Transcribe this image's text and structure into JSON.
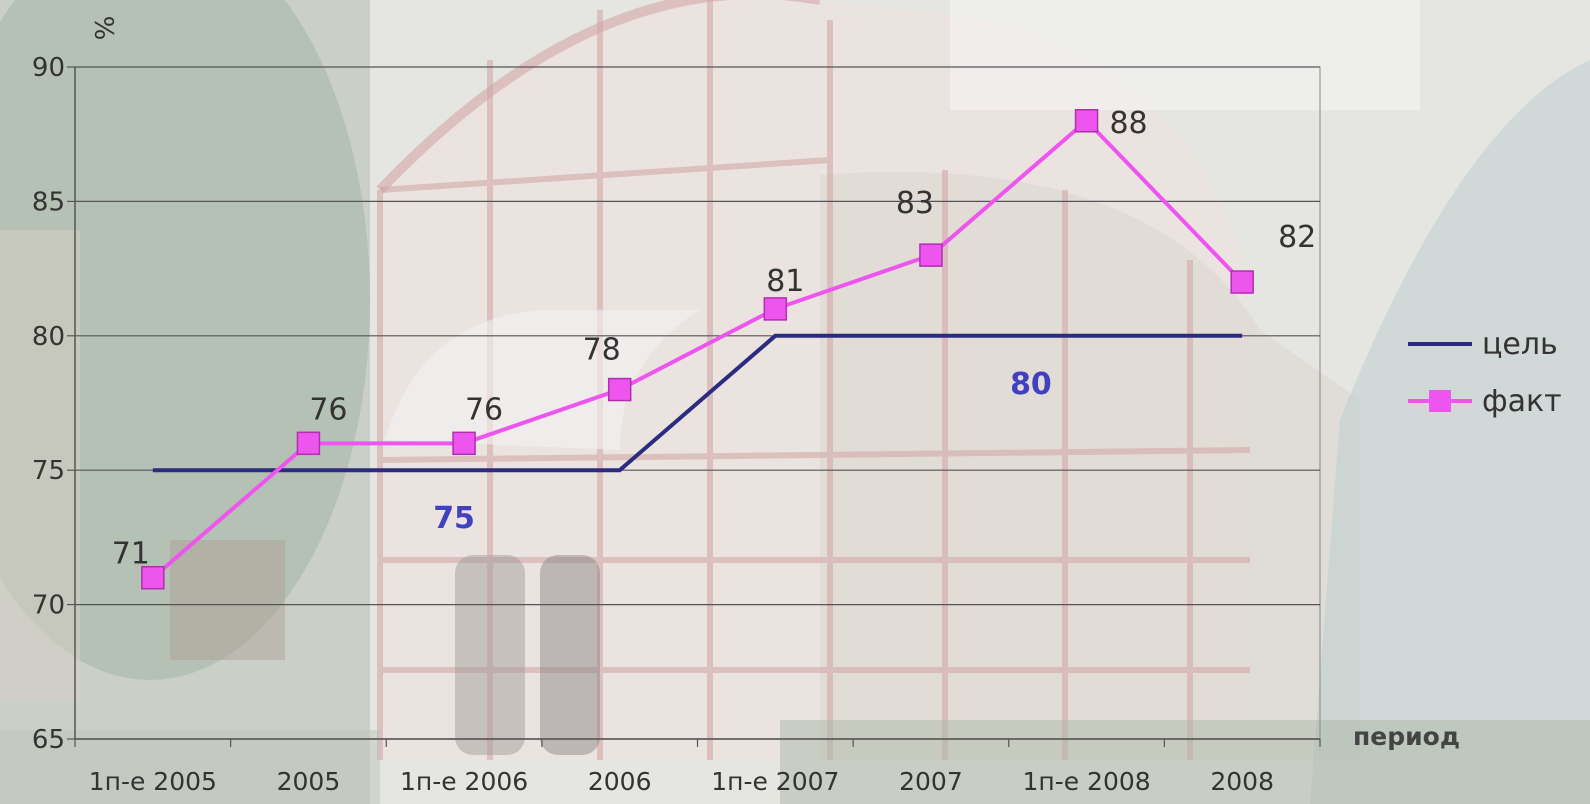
{
  "chart_data": {
    "type": "line",
    "title": "",
    "xlabel": "период",
    "ylabel": "%",
    "categories": [
      "1п-е 2005",
      "2005",
      "1п-е 2006",
      "2006",
      "1п-е 2007",
      "2007",
      "1п-е 2008",
      "2008"
    ],
    "ylim": [
      65,
      90
    ],
    "yticks": [
      65,
      70,
      75,
      80,
      85,
      90
    ],
    "grid": true,
    "legend_position": "right",
    "series": [
      {
        "name": "цель",
        "values": [
          75,
          75,
          75,
          75,
          80,
          80,
          80,
          80
        ],
        "color": "#2b2b80",
        "marker": "none"
      },
      {
        "name": "факт",
        "values": [
          71,
          76,
          76,
          78,
          81,
          83,
          88,
          82
        ],
        "color": "#ee55ee",
        "marker": "square"
      }
    ],
    "data_labels": {
      "факт": [
        "71",
        "76",
        "76",
        "78",
        "81",
        "83",
        "88",
        "82"
      ]
    },
    "annotations": [
      {
        "text": "75",
        "series": "цель",
        "category": "1п-е 2006"
      },
      {
        "text": "80",
        "series": "цель",
        "category": "2007"
      }
    ]
  }
}
